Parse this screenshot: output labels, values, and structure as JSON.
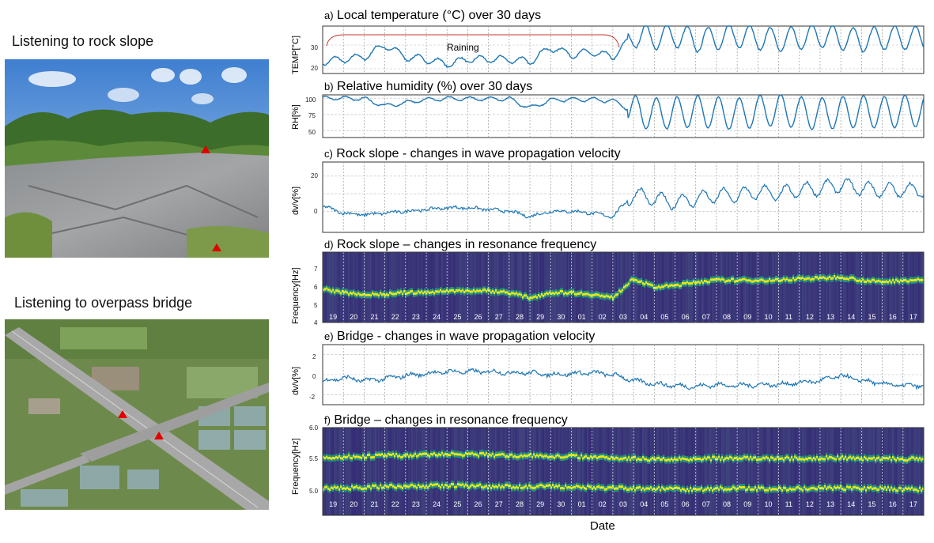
{
  "left": {
    "rock_slope_label": "Listening to rock slope",
    "bridge_label": "Listening to overpass bridge"
  },
  "colors": {
    "line": "#1f77b4",
    "rain_bracket": "#c0392b",
    "spectrogram_bg": "#3b0f70",
    "spectrogram_band": "#e7e419",
    "marker": "#e00000"
  },
  "panels": {
    "a": {
      "letter": "a)",
      "title": "Local temperature (°C) over 30 days",
      "ylabel": "TEMP[°C]",
      "yticks": [
        "20",
        "30"
      ],
      "annotation": "Raining",
      "ylim": [
        18,
        38
      ]
    },
    "b": {
      "letter": "b)",
      "title": "Relative humidity (%) over 30 days",
      "ylabel": "RH[%]",
      "yticks": [
        "50",
        "75",
        "100"
      ],
      "ylim": [
        40,
        105
      ]
    },
    "c": {
      "letter": "c)",
      "title": "Rock slope - changes in wave propagation velocity",
      "ylabel": "dv/v[%]",
      "yticks": [
        "0",
        "20"
      ],
      "ylim": [
        -12,
        28
      ]
    },
    "d": {
      "letter": "d)",
      "title": "Rock slope – changes in resonance frequency",
      "ylabel": "Frequency[Hz]",
      "yticks": [
        "4",
        "5",
        "6",
        "7"
      ],
      "ylim": [
        4,
        8
      ]
    },
    "e": {
      "letter": "e)",
      "title": "Bridge - changes in wave propagation velocity",
      "ylabel": "dv/v[%]",
      "yticks": [
        "-2",
        "0",
        "2"
      ],
      "ylim": [
        -3,
        3
      ]
    },
    "f": {
      "letter": "f)",
      "title": "Bridge – changes in resonance frequency",
      "ylabel": "Frequency[Hz]",
      "yticks": [
        "5.0",
        "5.5",
        "6.0"
      ],
      "ylim": [
        4.75,
        6.0
      ]
    }
  },
  "days": [
    "19",
    "20",
    "21",
    "22",
    "23",
    "24",
    "25",
    "26",
    "27",
    "28",
    "29",
    "30",
    "01",
    "02",
    "03",
    "04",
    "05",
    "06",
    "07",
    "08",
    "09",
    "10",
    "11",
    "12",
    "13",
    "14",
    "15",
    "16",
    "17"
  ],
  "xlabel": "Date",
  "chart_data": [
    {
      "type": "line",
      "title": "Local temperature (°C) over 30 days",
      "ylabel": "TEMP[°C]",
      "x": [
        "19",
        "20",
        "21",
        "22",
        "23",
        "24",
        "25",
        "26",
        "27",
        "28",
        "29",
        "30",
        "01",
        "02",
        "03",
        "04",
        "05",
        "06",
        "07",
        "08",
        "09",
        "10",
        "11",
        "12",
        "13",
        "14",
        "15",
        "16",
        "17"
      ],
      "series": [
        {
          "values": [
            23,
            24,
            25,
            30,
            25,
            24,
            22,
            24,
            24,
            24,
            23,
            29,
            26,
            27,
            25,
            34,
            33,
            34,
            32,
            33,
            34,
            33,
            32,
            33,
            34,
            33,
            32,
            33,
            33
          ]
        }
      ],
      "ylim": [
        18,
        38
      ]
    },
    {
      "type": "line",
      "title": "Relative humidity (%) over 30 days",
      "ylabel": "RH[%]",
      "x": [
        "19",
        "20",
        "21",
        "22",
        "23",
        "24",
        "25",
        "26",
        "27",
        "28",
        "29",
        "30",
        "01",
        "02",
        "03",
        "04",
        "05",
        "06",
        "07",
        "08",
        "09",
        "10",
        "11",
        "12",
        "13",
        "14",
        "15",
        "16",
        "17"
      ],
      "series": [
        {
          "values": [
            100,
            100,
            99,
            88,
            93,
            98,
            99,
            99,
            99,
            99,
            85,
            97,
            98,
            98,
            96,
            80,
            76,
            78,
            80,
            78,
            76,
            80,
            82,
            78,
            76,
            78,
            80,
            78,
            80
          ]
        }
      ],
      "ylim": [
        40,
        105
      ]
    },
    {
      "type": "line",
      "title": "Rock slope - changes in wave propagation velocity",
      "ylabel": "dv/v[%]",
      "x": [
        "19",
        "20",
        "21",
        "22",
        "23",
        "24",
        "25",
        "26",
        "27",
        "28",
        "29",
        "30",
        "01",
        "02",
        "03",
        "04",
        "05",
        "06",
        "07",
        "08",
        "09",
        "10",
        "11",
        "12",
        "13",
        "14",
        "15",
        "16",
        "17"
      ],
      "series": [
        {
          "values": [
            3,
            -1,
            -2,
            -1,
            0,
            1,
            2,
            2,
            1,
            0,
            -3,
            0,
            0,
            -1,
            -3,
            10,
            7,
            5,
            7,
            9,
            9,
            11,
            10,
            12,
            13,
            15,
            13,
            12,
            12
          ]
        }
      ],
      "ylim": [
        -12,
        28
      ]
    },
    {
      "type": "heatmap",
      "title": "Rock slope – changes in resonance frequency",
      "ylabel": "Frequency[Hz]",
      "x": [
        "19",
        "20",
        "21",
        "22",
        "23",
        "24",
        "25",
        "26",
        "27",
        "28",
        "29",
        "30",
        "01",
        "02",
        "03",
        "04",
        "05",
        "06",
        "07",
        "08",
        "09",
        "10",
        "11",
        "12",
        "13",
        "14",
        "15",
        "16",
        "17"
      ],
      "series": [
        {
          "values": [
            5.9,
            5.7,
            5.6,
            5.6,
            5.7,
            5.7,
            5.8,
            5.8,
            5.8,
            5.7,
            5.4,
            5.7,
            5.7,
            5.6,
            5.4,
            6.5,
            6.0,
            6.1,
            6.3,
            6.4,
            6.4,
            6.4,
            6.4,
            6.5,
            6.5,
            6.6,
            6.4,
            6.3,
            6.4
          ]
        }
      ],
      "ylim": [
        4,
        8
      ]
    },
    {
      "type": "line",
      "title": "Bridge - changes in wave propagation velocity",
      "ylabel": "dv/v[%]",
      "x": [
        "19",
        "20",
        "21",
        "22",
        "23",
        "24",
        "25",
        "26",
        "27",
        "28",
        "29",
        "30",
        "01",
        "02",
        "03",
        "04",
        "05",
        "06",
        "07",
        "08",
        "09",
        "10",
        "11",
        "12",
        "13",
        "14",
        "15",
        "16",
        "17"
      ],
      "series": [
        {
          "values": [
            -0.7,
            -0.3,
            -0.6,
            -0.4,
            -0.1,
            0.1,
            0.3,
            0.3,
            0.3,
            0.2,
            0.2,
            0.0,
            0.1,
            0.2,
            0.0,
            -0.6,
            -0.9,
            -1.1,
            -1.2,
            -1.0,
            -1.1,
            -1.0,
            -1.0,
            -0.8,
            -0.6,
            -0.1,
            -0.6,
            -0.9,
            -1.1
          ]
        }
      ],
      "ylim": [
        -3,
        3
      ]
    },
    {
      "type": "heatmap",
      "title": "Bridge – changes in resonance frequency",
      "ylabel": "Frequency[Hz]",
      "x": [
        "19",
        "20",
        "21",
        "22",
        "23",
        "24",
        "25",
        "26",
        "27",
        "28",
        "29",
        "30",
        "01",
        "02",
        "03",
        "04",
        "05",
        "06",
        "07",
        "08",
        "09",
        "10",
        "11",
        "12",
        "13",
        "14",
        "15",
        "16",
        "17"
      ],
      "series": [
        {
          "values": [
            5.57,
            5.58,
            5.59,
            5.6,
            5.6,
            5.61,
            5.62,
            5.62,
            5.61,
            5.6,
            5.6,
            5.59,
            5.59,
            5.58,
            5.57,
            5.56,
            5.55,
            5.55,
            5.56,
            5.56,
            5.56,
            5.56,
            5.56,
            5.56,
            5.57,
            5.57,
            5.56,
            5.56,
            5.55
          ]
        },
        {
          "values": [
            5.14,
            5.14,
            5.15,
            5.16,
            5.16,
            5.17,
            5.17,
            5.17,
            5.16,
            5.16,
            5.16,
            5.16,
            5.15,
            5.15,
            5.14,
            5.13,
            5.13,
            5.12,
            5.12,
            5.13,
            5.13,
            5.13,
            5.13,
            5.13,
            5.14,
            5.14,
            5.13,
            5.13,
            5.12
          ]
        }
      ],
      "ylim": [
        4.75,
        6.0
      ]
    }
  ]
}
